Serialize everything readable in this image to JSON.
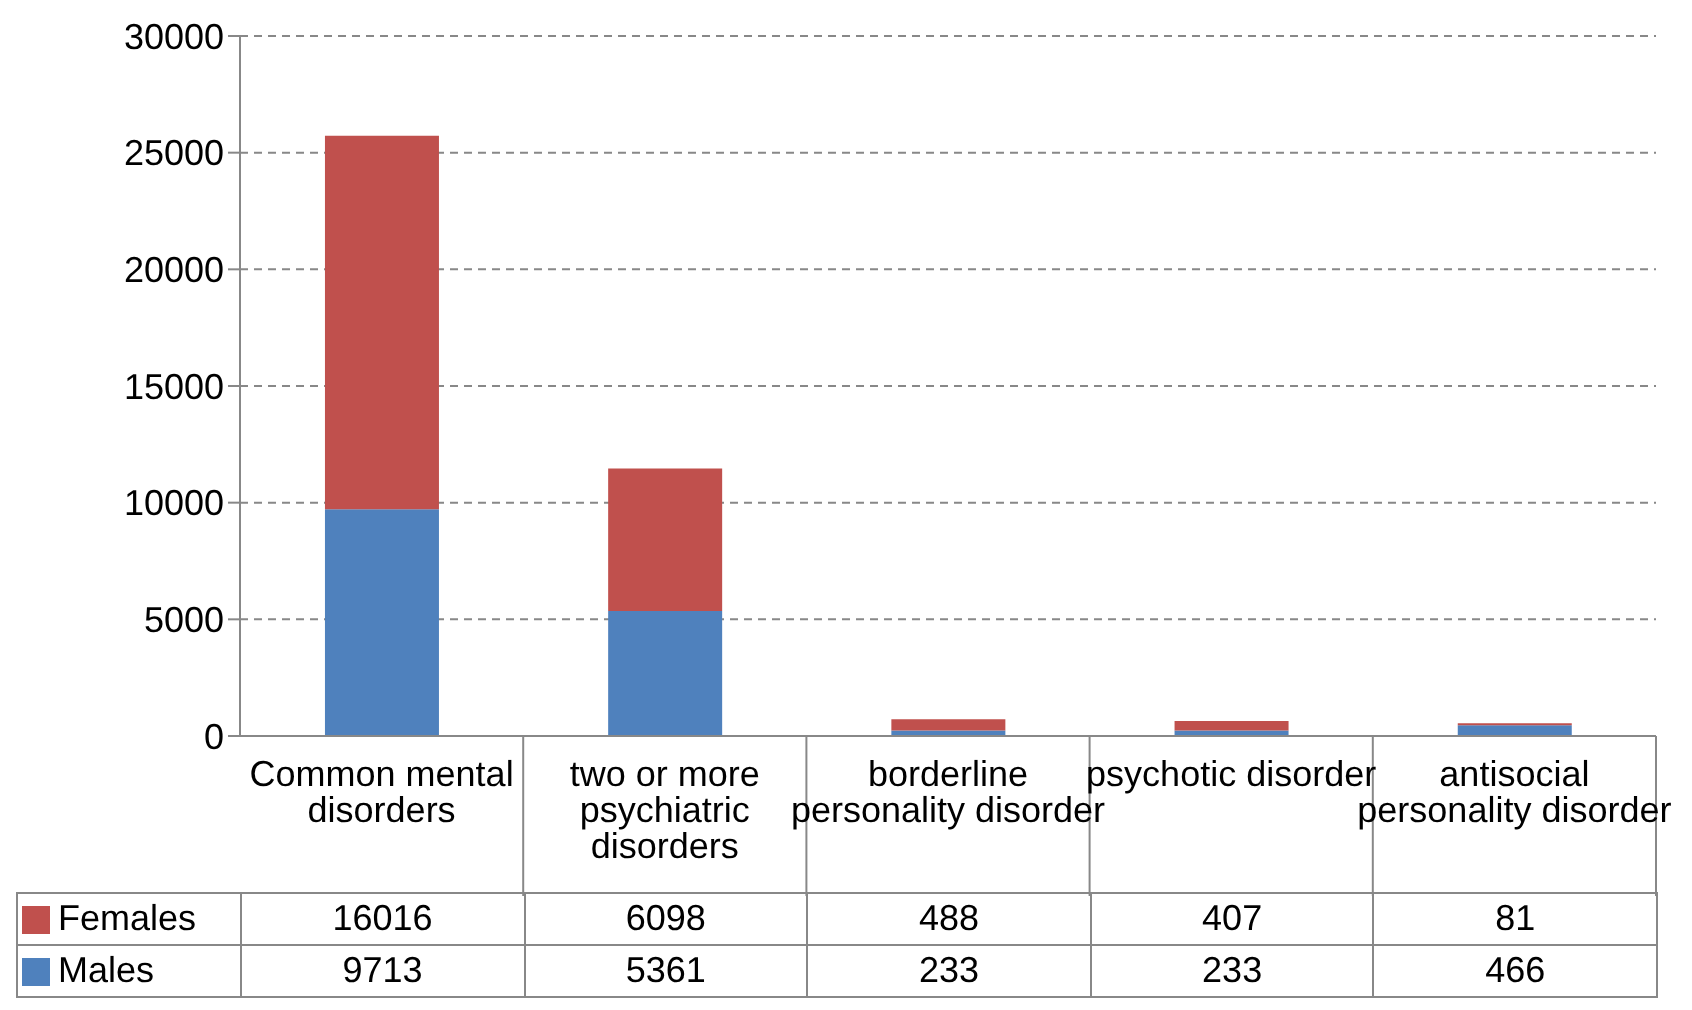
{
  "chart_data": {
    "type": "bar",
    "stacked": true,
    "categories": [
      "Common mental disorders",
      "two or more psychiatric disorders",
      "borderline personality disorder",
      "psychotic disorder",
      "antisocial personality disorder"
    ],
    "series": [
      {
        "name": "Males",
        "color": "#4f81bd",
        "values": [
          9713,
          5361,
          233,
          233,
          466
        ]
      },
      {
        "name": "Females",
        "color": "#c0504d",
        "values": [
          16016,
          6098,
          488,
          407,
          81
        ]
      }
    ],
    "ylim": [
      0,
      30000
    ],
    "yticks": [
      0,
      5000,
      10000,
      15000,
      20000,
      25000,
      30000
    ],
    "grid": "y",
    "legend": "bottom",
    "data_labels": true
  }
}
